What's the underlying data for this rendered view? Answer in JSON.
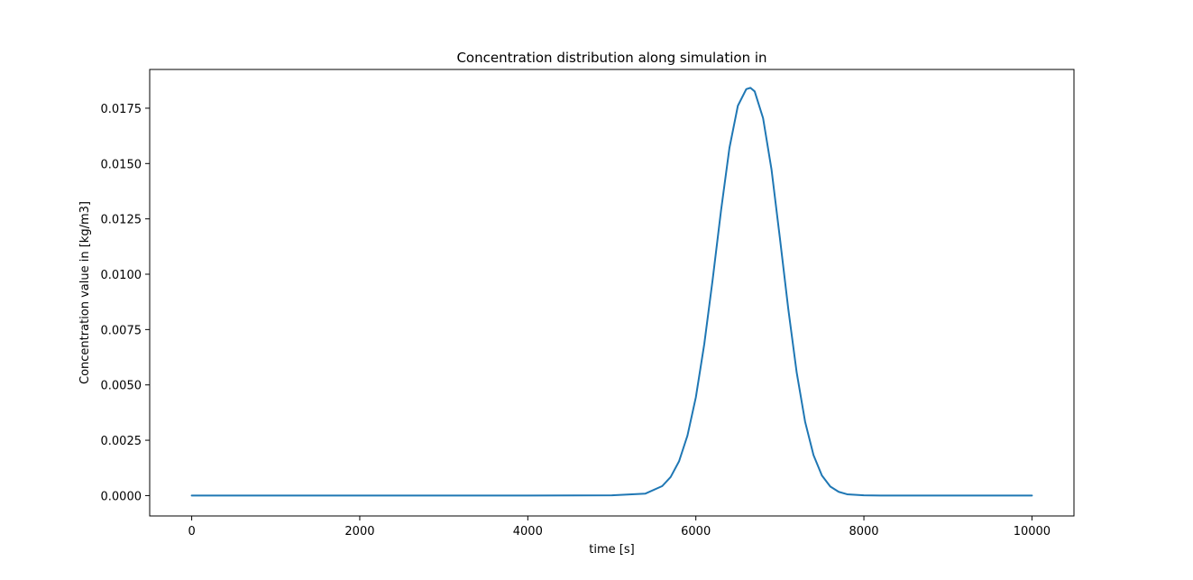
{
  "chart_data": {
    "type": "line",
    "title": "Concentration distribution along simulation in",
    "xlabel": "time [s]",
    "ylabel": "Concentration value in [kg/m3]",
    "xlim": [
      -500,
      10500
    ],
    "ylim": [
      -0.00092,
      0.01925
    ],
    "x_ticks": [
      0,
      2000,
      4000,
      6000,
      8000,
      10000
    ],
    "x_tick_labels": [
      "0",
      "2000",
      "4000",
      "6000",
      "8000",
      "10000"
    ],
    "y_ticks": [
      0.0,
      0.0025,
      0.005,
      0.0075,
      0.01,
      0.0125,
      0.015,
      0.0175
    ],
    "y_tick_labels": [
      "0.0000",
      "0.0025",
      "0.0050",
      "0.0075",
      "0.0100",
      "0.0125",
      "0.0150",
      "0.0175"
    ],
    "grid": false,
    "legend": "none",
    "series": [
      {
        "color": "#1f77b4",
        "x": [
          0,
          1000,
          2000,
          3000,
          4000,
          5000,
          5400,
          5600,
          5700,
          5800,
          5900,
          6000,
          6100,
          6200,
          6300,
          6400,
          6500,
          6600,
          6650,
          6700,
          6800,
          6900,
          7000,
          7100,
          7200,
          7300,
          7400,
          7500,
          7600,
          7700,
          7800,
          8000,
          8200,
          8500,
          9000,
          10000
        ],
        "y": [
          0.0,
          0.0,
          0.0,
          0.0,
          0.0,
          1e-05,
          9e-05,
          0.00043,
          0.00084,
          0.00155,
          0.00271,
          0.00444,
          0.00684,
          0.00976,
          0.01289,
          0.01571,
          0.01761,
          0.01836,
          0.01842,
          0.01826,
          0.01705,
          0.01474,
          0.01164,
          0.00843,
          0.00556,
          0.00334,
          0.00183,
          0.00091,
          0.00041,
          0.00017,
          6e-05,
          1e-05,
          0.0,
          0.0,
          0.0,
          0.0
        ]
      }
    ]
  }
}
